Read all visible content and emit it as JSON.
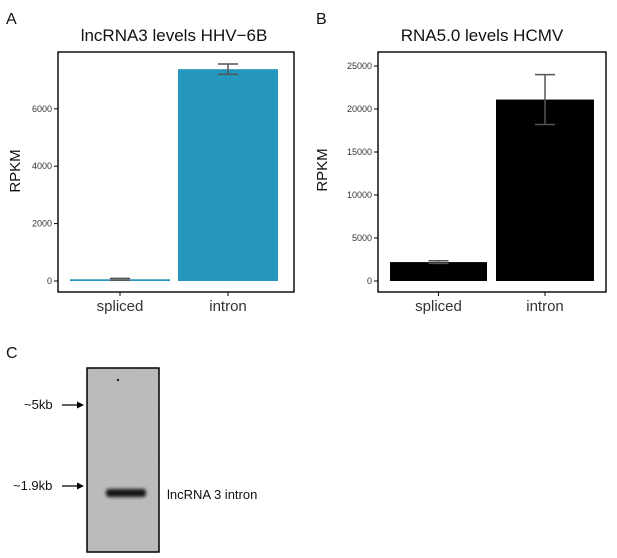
{
  "chart_data": [
    {
      "type": "bar",
      "panel": "A",
      "title": "lncRNA3 levels HHV−6B",
      "xlabel": "",
      "ylabel": "RPKM",
      "categories": [
        "spliced",
        "intron"
      ],
      "values": [
        60,
        7380
      ],
      "error_low": [
        30,
        7200
      ],
      "error_high": [
        90,
        7560
      ],
      "ylim": [
        0,
        7700
      ],
      "yticks": [
        0,
        2000,
        4000,
        6000
      ],
      "ytick_labels": [
        "0",
        "2000",
        "4000",
        "6000"
      ],
      "bar_color": "#2596be",
      "grid": false
    },
    {
      "type": "bar",
      "panel": "B",
      "title": "RNA5.0 levels HCMV",
      "xlabel": "",
      "ylabel": "RPKM",
      "categories": [
        "spliced",
        "intron"
      ],
      "values": [
        2200,
        21100
      ],
      "error_low": [
        2050,
        18200
      ],
      "error_high": [
        2350,
        24000
      ],
      "ylim": [
        0,
        25700
      ],
      "yticks": [
        0,
        5000,
        10000,
        15000,
        20000,
        25000
      ],
      "ytick_labels": [
        "0",
        "5000",
        "10000",
        "15000",
        "20000",
        "25000"
      ],
      "bar_color": "#000000",
      "grid": false
    }
  ],
  "blot": {
    "panel": "C",
    "markers": [
      "~5kb",
      "~1.9kb"
    ],
    "band_label": "lncRNA 3 intron"
  }
}
